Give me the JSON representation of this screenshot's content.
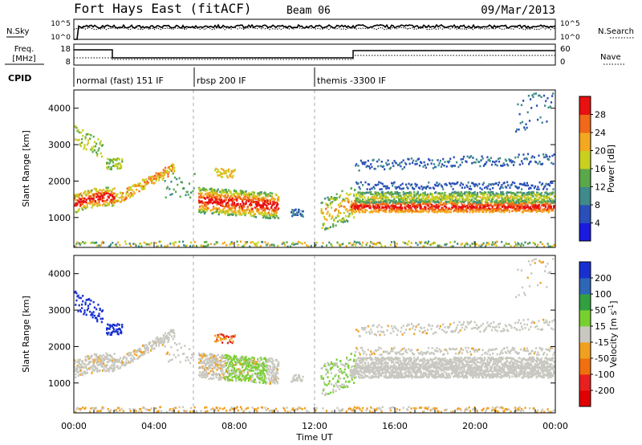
{
  "header": {
    "station": "Fort Hays East (fitACF)",
    "beam": "Beam 06",
    "date": "09/Mar/2013"
  },
  "strips": {
    "nsky": {
      "label": "N.Sky",
      "ticks": [
        "10^5",
        "10^0"
      ]
    },
    "nsearch": {
      "label": "N.Search",
      "ticks": [
        "10^5",
        "10^0"
      ]
    },
    "freq": {
      "label_1": "Freq.",
      "label_2": "[MHz]",
      "ticks": [
        "18",
        "8"
      ]
    },
    "nave": {
      "label": "Nave",
      "ticks": [
        "60",
        "0"
      ]
    },
    "cpid": {
      "label": "CPID"
    }
  },
  "cpid_segments": [
    {
      "label": "normal (fast) 151 IF",
      "start_hour": 0,
      "end_hour": 6
    },
    {
      "label": "rbsp 200 IF",
      "start_hour": 6,
      "end_hour": 12
    },
    {
      "label": "themis -3300 IF",
      "start_hour": 12,
      "end_hour": 24
    }
  ],
  "chart_data": [
    {
      "type": "heatmap",
      "panel": "power",
      "xlabel": "Time UT",
      "ylabel": "Slant Range [km]",
      "x_ticks": [
        "00:00",
        "04:00",
        "08:00",
        "12:00",
        "16:00",
        "20:00",
        "00:00"
      ],
      "xlim": [
        0,
        24
      ],
      "ylim": [
        180,
        4500
      ],
      "y_ticks": [
        1000,
        2000,
        3000,
        4000
      ],
      "colorbar": {
        "label": "Power [dB]",
        "ticks": [
          "4",
          "8",
          "12",
          "16",
          "20",
          "24",
          "28"
        ],
        "colors": [
          "#1a1ae0",
          "#2a4fb8",
          "#3f8a8a",
          "#5aa84a",
          "#c8d020",
          "#f4a820",
          "#f06818",
          "#e81010"
        ]
      }
    },
    {
      "type": "heatmap",
      "panel": "velocity",
      "xlabel": "Time UT",
      "ylabel": "Slant Range [km]",
      "x_ticks": [
        "00:00",
        "04:00",
        "08:00",
        "12:00",
        "16:00",
        "20:00",
        "00:00"
      ],
      "xlim": [
        0,
        24
      ],
      "ylim": [
        180,
        4500
      ],
      "y_ticks": [
        1000,
        2000,
        3000,
        4000
      ],
      "colorbar": {
        "label_main": "Velocity [m s",
        "label_sup": "-1",
        "label_end": "]",
        "ticks": [
          "200",
          "100",
          "50",
          "15",
          "-15",
          "-50",
          "-100",
          "-200"
        ],
        "colors": [
          "#1830d0",
          "#2e66b8",
          "#32a040",
          "#78d030",
          "#c8c8c0",
          "#f0a020",
          "#f07010",
          "#e82020",
          "#e00000"
        ]
      }
    }
  ],
  "time_axis_label": "Time UT"
}
